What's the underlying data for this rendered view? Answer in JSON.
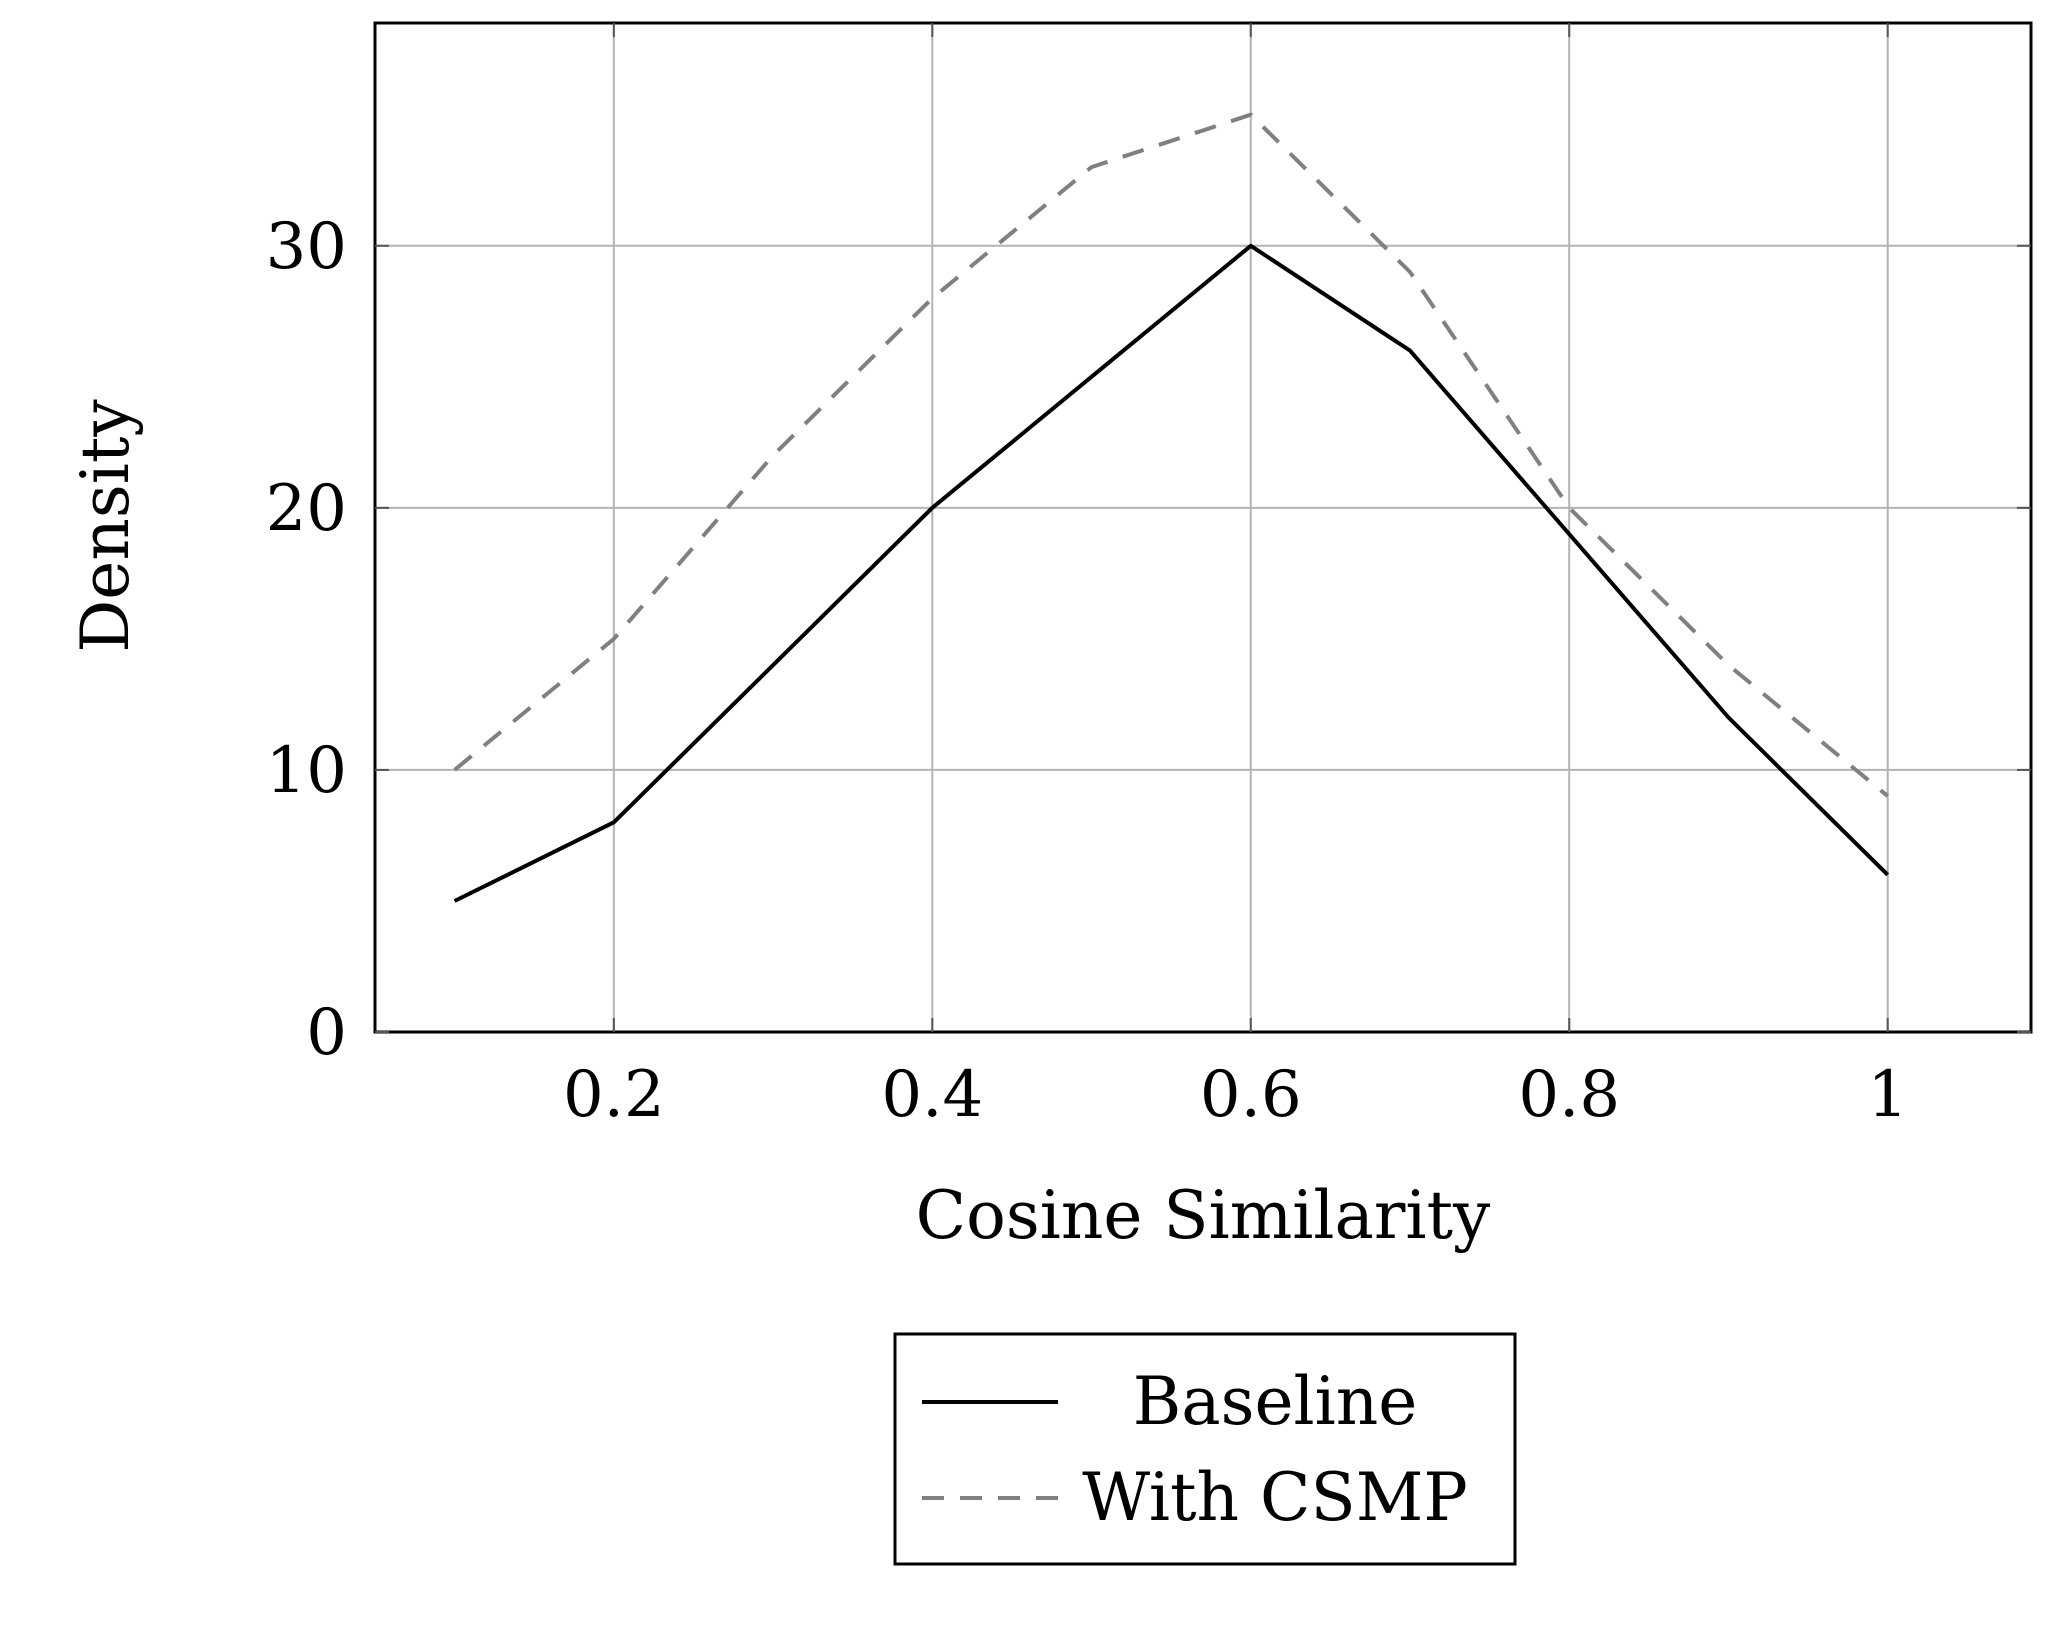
{
  "chart_data": {
    "type": "line",
    "xlabel": "Cosine Similarity",
    "ylabel": "Density",
    "xlim": [
      0.05,
      1.09
    ],
    "ylim": [
      0,
      38.5
    ],
    "xticks": [
      0.2,
      0.4,
      0.6,
      0.8,
      1
    ],
    "xtick_labels": [
      "0.2",
      "0.4",
      "0.6",
      "0.8",
      "1"
    ],
    "yticks": [
      0,
      10,
      20,
      30
    ],
    "ytick_labels": [
      "0",
      "10",
      "20",
      "30"
    ],
    "grid": true,
    "legend_position": "below",
    "series": [
      {
        "name": "Baseline",
        "style": "solid",
        "color": "#000000",
        "x": [
          0.1,
          0.2,
          0.3,
          0.4,
          0.5,
          0.6,
          0.7,
          0.8,
          0.9,
          1.0
        ],
        "y": [
          5,
          8,
          14,
          20,
          25,
          30,
          26,
          19,
          12,
          6
        ]
      },
      {
        "name": "With CSMP",
        "style": "dashed",
        "color": "#808080",
        "x": [
          0.1,
          0.2,
          0.3,
          0.4,
          0.5,
          0.6,
          0.7,
          0.8,
          0.9,
          1.0
        ],
        "y": [
          10,
          15,
          22,
          28,
          33,
          35,
          29,
          20,
          14,
          9
        ]
      }
    ]
  }
}
